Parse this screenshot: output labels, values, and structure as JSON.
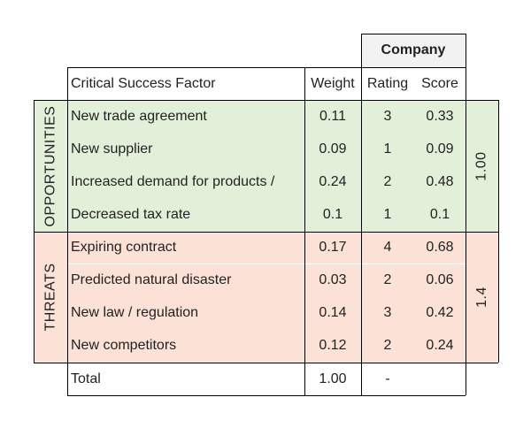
{
  "header": {
    "company": "Company",
    "factor_col": "Critical Success Factor",
    "weight_col": "Weight",
    "rating_col": "Rating",
    "score_col": "Score"
  },
  "groups": [
    {
      "label": "OPPORTUNITIES",
      "subtotal": "1.00",
      "color": "#e2f0d9"
    },
    {
      "label": "THREATS",
      "subtotal": "1.4",
      "color": "#fbe1d6"
    }
  ],
  "rows": [
    {
      "factor": "New trade agreement",
      "weight": "0.11",
      "rating": "3",
      "score": "0.33"
    },
    {
      "factor": "New supplier",
      "weight": "0.09",
      "rating": "1",
      "score": "0.09"
    },
    {
      "factor": "Increased demand for products / ",
      "weight": "0.24",
      "rating": "2",
      "score": "0.48"
    },
    {
      "factor": "Decreased tax rate",
      "weight": "0.1",
      "rating": "1",
      "score": "0.1"
    },
    {
      "factor": "Expiring contract",
      "weight": "0.17",
      "rating": "4",
      "score": "0.68"
    },
    {
      "factor": "Predicted natural disaster",
      "weight": "0.03",
      "rating": "2",
      "score": "0.06"
    },
    {
      "factor": "New law / regulation",
      "weight": "0.14",
      "rating": "3",
      "score": "0.42"
    },
    {
      "factor": "New competitors",
      "weight": "0.12",
      "rating": "2",
      "score": "0.24"
    }
  ],
  "total": {
    "label": "Total",
    "weight": "1.00",
    "rating": "-"
  }
}
